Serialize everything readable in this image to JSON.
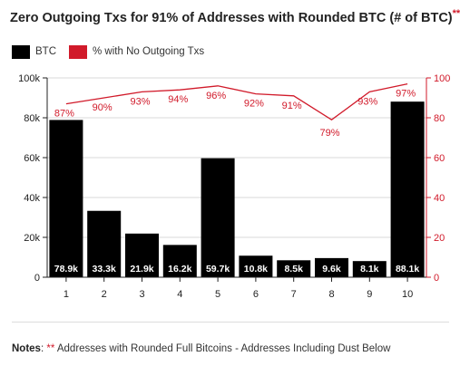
{
  "header": {
    "title": "Zero Outgoing Txs for 91% of Addresses with Rounded BTC (# of BTC)",
    "title_mark": "**"
  },
  "legend": {
    "btc_label": "BTC",
    "pct_label": "% with No Outgoing Txs"
  },
  "notes": {
    "label": "Notes",
    "mark": "**",
    "text": "Addresses with Rounded Full Bitcoins - Addresses Including Dust Below"
  },
  "colors": {
    "bar": "#000000",
    "line": "#d11a2a",
    "left_axis_text": "#222222",
    "right_axis_text": "#d11a2a",
    "grid": "#d8d8d8"
  },
  "chart_data": {
    "type": "bar",
    "categories": [
      "1",
      "2",
      "3",
      "4",
      "5",
      "6",
      "7",
      "8",
      "9",
      "10"
    ],
    "series": [
      {
        "name": "BTC",
        "type": "bar",
        "axis": "left",
        "values": [
          78900,
          33300,
          21900,
          16200,
          59700,
          10800,
          8500,
          9600,
          8100,
          88100
        ],
        "labels": [
          "78.9k",
          "33.3k",
          "21.9k",
          "16.2k",
          "59.7k",
          "10.8k",
          "8.5k",
          "9.6k",
          "8.1k",
          "88.1k"
        ]
      },
      {
        "name": "% with No Outgoing Txs",
        "type": "line",
        "axis": "right",
        "values": [
          87,
          90,
          93,
          94,
          96,
          92,
          91,
          79,
          93,
          97
        ],
        "labels": [
          "87%",
          "90%",
          "93%",
          "94%",
          "96%",
          "92%",
          "91%",
          "79%",
          "93%",
          "97%"
        ]
      }
    ],
    "y_left": {
      "range": [
        0,
        100000
      ],
      "ticks": [
        0,
        20000,
        40000,
        60000,
        80000,
        100000
      ],
      "tick_labels": [
        "0",
        "20k",
        "40k",
        "60k",
        "80k",
        "100k"
      ]
    },
    "y_right": {
      "range": [
        0,
        100
      ],
      "ticks": [
        0,
        20,
        40,
        60,
        80,
        100
      ],
      "tick_labels": [
        "0",
        "20",
        "40",
        "60",
        "80",
        "100"
      ]
    },
    "grid": true,
    "legend_position": "top-left"
  }
}
